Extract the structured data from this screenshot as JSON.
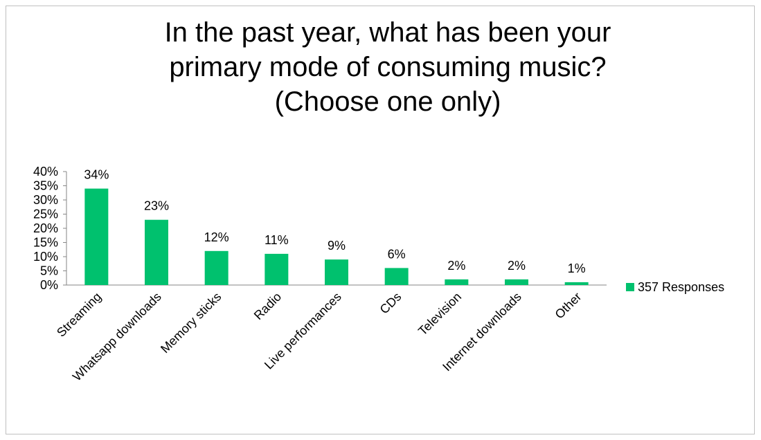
{
  "chart_data": {
    "type": "bar",
    "title_lines": [
      "In the past year, what has been your",
      "primary mode of consuming music?",
      "(Choose one only)"
    ],
    "categories": [
      "Streaming",
      "Whatsapp downloads",
      "Memory sticks",
      "Radio",
      "Live performances",
      "CDs",
      "Television",
      "Internet downloads",
      "Other"
    ],
    "series": [
      {
        "name": "357 Responses",
        "values": [
          34,
          23,
          12,
          11,
          9,
          6,
          2,
          2,
          1
        ],
        "data_labels": [
          "34%",
          "23%",
          "12%",
          "11%",
          "9%",
          "6%",
          "2%",
          "2%",
          "1%"
        ],
        "color": "#00c16e"
      }
    ],
    "y_ticks": [
      "0%",
      "5%",
      "10%",
      "15%",
      "20%",
      "25%",
      "30%",
      "35%",
      "40%"
    ],
    "ylim": [
      0,
      40
    ],
    "grid": false,
    "legend": "right"
  }
}
